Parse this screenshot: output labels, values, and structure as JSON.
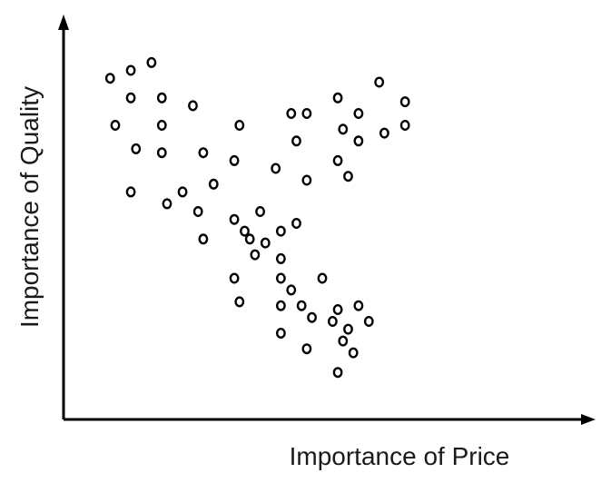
{
  "chart_data": {
    "type": "scatter",
    "xlabel": "Importance of Price",
    "ylabel": "Importance of Quality",
    "xlim": [
      0,
      100
    ],
    "ylim": [
      0,
      100
    ],
    "grid": false,
    "legend": "none",
    "ticks": false,
    "points": [
      {
        "x": 9,
        "y": 87
      },
      {
        "x": 13,
        "y": 89
      },
      {
        "x": 17,
        "y": 91
      },
      {
        "x": 13,
        "y": 82
      },
      {
        "x": 19,
        "y": 82
      },
      {
        "x": 25,
        "y": 80
      },
      {
        "x": 10,
        "y": 75
      },
      {
        "x": 19,
        "y": 75
      },
      {
        "x": 34,
        "y": 75
      },
      {
        "x": 14,
        "y": 69
      },
      {
        "x": 19,
        "y": 68
      },
      {
        "x": 27,
        "y": 68
      },
      {
        "x": 33,
        "y": 66
      },
      {
        "x": 41,
        "y": 64
      },
      {
        "x": 13,
        "y": 58
      },
      {
        "x": 23,
        "y": 58
      },
      {
        "x": 29,
        "y": 60
      },
      {
        "x": 20,
        "y": 55
      },
      {
        "x": 26,
        "y": 53
      },
      {
        "x": 33,
        "y": 51
      },
      {
        "x": 38,
        "y": 53
      },
      {
        "x": 35,
        "y": 48
      },
      {
        "x": 27,
        "y": 46
      },
      {
        "x": 36,
        "y": 46
      },
      {
        "x": 42,
        "y": 48
      },
      {
        "x": 37,
        "y": 42
      },
      {
        "x": 39,
        "y": 45
      },
      {
        "x": 45,
        "y": 50
      },
      {
        "x": 42,
        "y": 41
      },
      {
        "x": 33,
        "y": 36
      },
      {
        "x": 34,
        "y": 30
      },
      {
        "x": 42,
        "y": 36
      },
      {
        "x": 44,
        "y": 33
      },
      {
        "x": 50,
        "y": 36
      },
      {
        "x": 42,
        "y": 29
      },
      {
        "x": 46,
        "y": 29
      },
      {
        "x": 48,
        "y": 26
      },
      {
        "x": 52,
        "y": 25
      },
      {
        "x": 53,
        "y": 28
      },
      {
        "x": 55,
        "y": 23
      },
      {
        "x": 57,
        "y": 29
      },
      {
        "x": 59,
        "y": 25
      },
      {
        "x": 42,
        "y": 22
      },
      {
        "x": 47,
        "y": 18
      },
      {
        "x": 54,
        "y": 20
      },
      {
        "x": 56,
        "y": 17
      },
      {
        "x": 53,
        "y": 12
      },
      {
        "x": 44,
        "y": 78
      },
      {
        "x": 47,
        "y": 78
      },
      {
        "x": 53,
        "y": 82
      },
      {
        "x": 54,
        "y": 74
      },
      {
        "x": 57,
        "y": 78
      },
      {
        "x": 61,
        "y": 86
      },
      {
        "x": 66,
        "y": 81
      },
      {
        "x": 66,
        "y": 75
      },
      {
        "x": 57,
        "y": 71
      },
      {
        "x": 45,
        "y": 71
      },
      {
        "x": 53,
        "y": 66
      },
      {
        "x": 55,
        "y": 62
      },
      {
        "x": 47,
        "y": 61
      },
      {
        "x": 62,
        "y": 73
      }
    ]
  }
}
